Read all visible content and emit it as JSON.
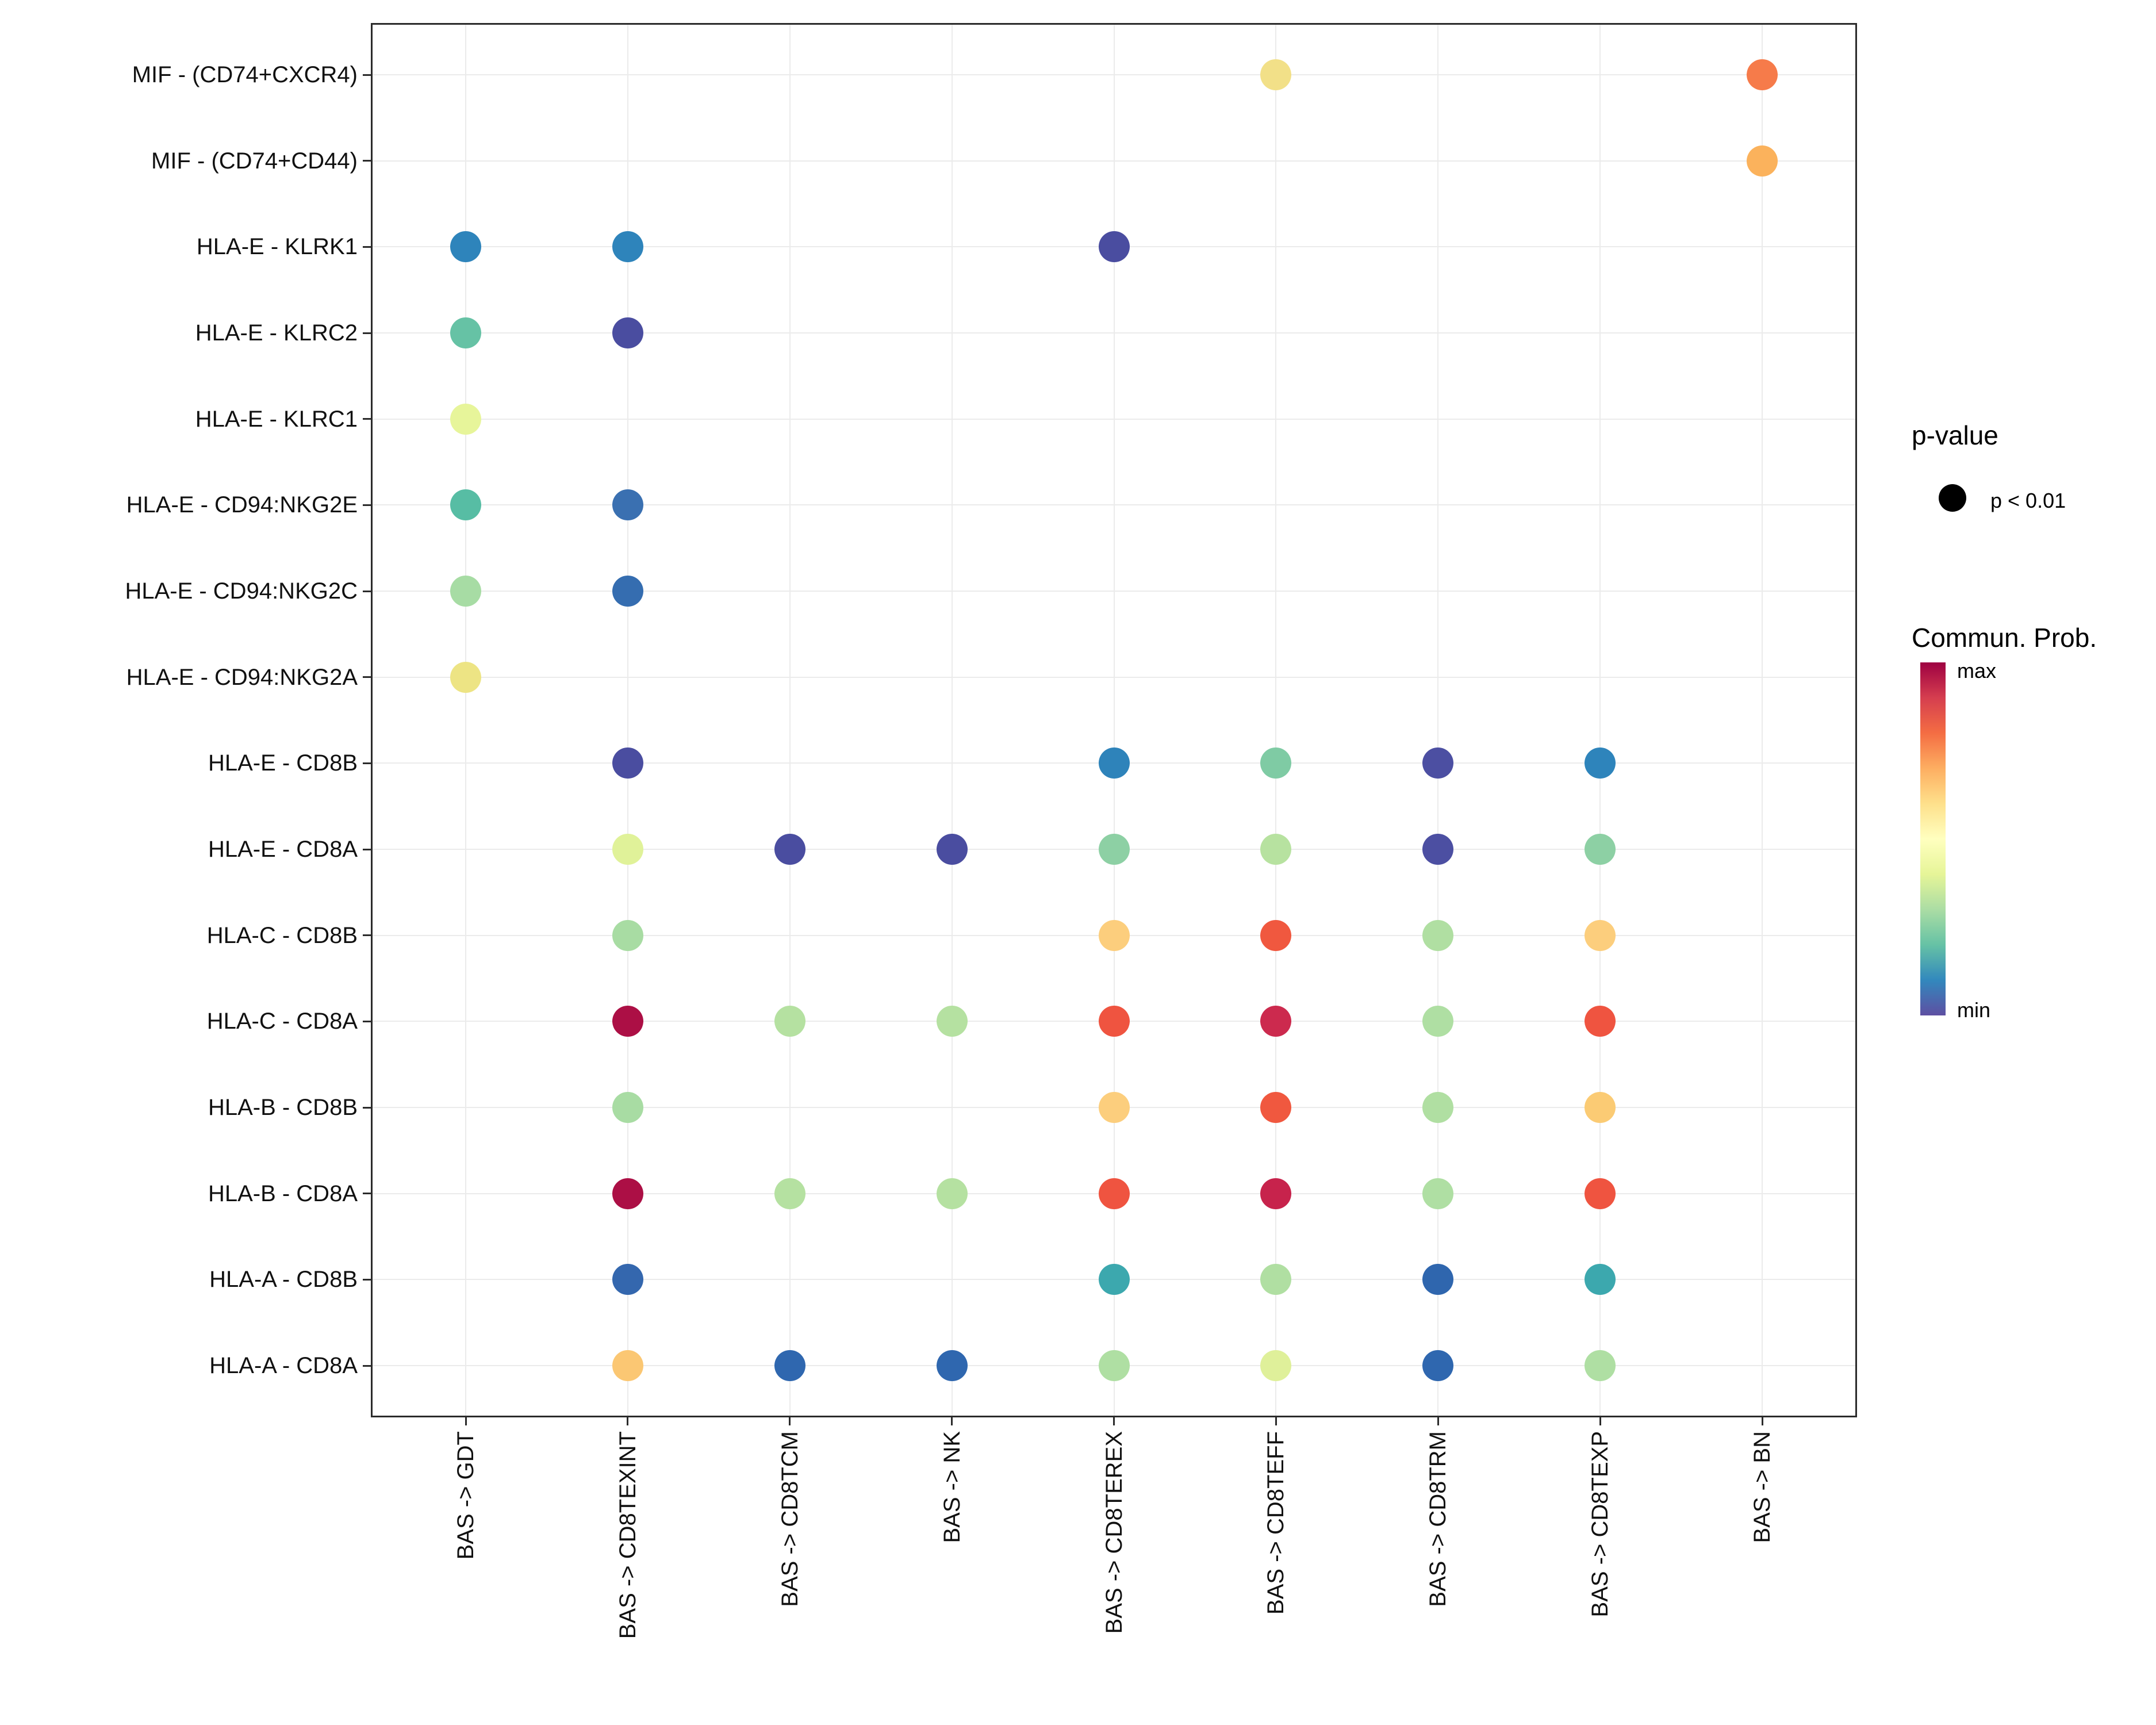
{
  "chart_data": {
    "type": "scatter",
    "subtype": "bubble-dotplot",
    "title": "",
    "x_axis": {
      "label": "",
      "categories": [
        "BAS -> GDT",
        "BAS -> CD8TEXINT",
        "BAS -> CD8TCM",
        "BAS -> NK",
        "BAS -> CD8TEREX",
        "BAS -> CD8TEFF",
        "BAS -> CD8TRM",
        "BAS -> CD8TEXP",
        "BAS -> BN"
      ]
    },
    "y_axis": {
      "label": "",
      "categories_top_to_bottom": [
        "MIF - (CD74+CXCR4)",
        "MIF - (CD74+CD44)",
        "HLA-E - KLRK1",
        "HLA-E - KLRC2",
        "HLA-E - KLRC1",
        "HLA-E - CD94:NKG2E",
        "HLA-E - CD94:NKG2C",
        "HLA-E - CD94:NKG2A",
        "HLA-E - CD8B",
        "HLA-E - CD8A",
        "HLA-C - CD8B",
        "HLA-C - CD8A",
        "HLA-B - CD8B",
        "HLA-B - CD8A",
        "HLA-A - CD8B",
        "HLA-A - CD8A"
      ]
    },
    "grid": true,
    "points": [
      {
        "x": "BAS -> CD8TEFF",
        "y": "MIF - (CD74+CXCR4)",
        "color": "#F2E088"
      },
      {
        "x": "BAS -> BN",
        "y": "MIF - (CD74+CXCR4)",
        "color": "#F67B4A"
      },
      {
        "x": "BAS -> BN",
        "y": "MIF - (CD74+CD44)",
        "color": "#FBB25C"
      },
      {
        "x": "BAS -> GDT",
        "y": "HLA-E - KLRK1",
        "color": "#2E84BB"
      },
      {
        "x": "BAS -> CD8TEXINT",
        "y": "HLA-E - KLRK1",
        "color": "#2E84BB"
      },
      {
        "x": "BAS -> CD8TEREX",
        "y": "HLA-E - KLRK1",
        "color": "#4A4DA0"
      },
      {
        "x": "BAS -> GDT",
        "y": "HLA-E - KLRC2",
        "color": "#66C2A5"
      },
      {
        "x": "BAS -> CD8TEXINT",
        "y": "HLA-E - KLRC2",
        "color": "#4A4DA0"
      },
      {
        "x": "BAS -> GDT",
        "y": "HLA-E - KLRC1",
        "color": "#E7F59A"
      },
      {
        "x": "BAS -> GDT",
        "y": "HLA-E - CD94:NKG2E",
        "color": "#57BDA4"
      },
      {
        "x": "BAS -> CD8TEXINT",
        "y": "HLA-E - CD94:NKG2E",
        "color": "#3A70B1"
      },
      {
        "x": "BAS -> GDT",
        "y": "HLA-E - CD94:NKG2C",
        "color": "#A7DCA4"
      },
      {
        "x": "BAS -> CD8TEXINT",
        "y": "HLA-E - CD94:NKG2C",
        "color": "#356DB0"
      },
      {
        "x": "BAS -> GDT",
        "y": "HLA-E - CD94:NKG2A",
        "color": "#EDE484"
      },
      {
        "x": "BAS -> CD8TEXINT",
        "y": "HLA-E - CD8B",
        "color": "#4A4DA0"
      },
      {
        "x": "BAS -> CD8TEREX",
        "y": "HLA-E - CD8B",
        "color": "#2E83BA"
      },
      {
        "x": "BAS -> CD8TEFF",
        "y": "HLA-E - CD8B",
        "color": "#7FCBA4"
      },
      {
        "x": "BAS -> CD8TRM",
        "y": "HLA-E - CD8B",
        "color": "#4C4FA2"
      },
      {
        "x": "BAS -> CD8TEXP",
        "y": "HLA-E - CD8B",
        "color": "#2E84BB"
      },
      {
        "x": "BAS -> CD8TEXINT",
        "y": "HLA-E - CD8A",
        "color": "#E0F299"
      },
      {
        "x": "BAS -> CD8TCM",
        "y": "HLA-E - CD8A",
        "color": "#4A4DA0"
      },
      {
        "x": "BAS -> NK",
        "y": "HLA-E - CD8A",
        "color": "#4A4DA0"
      },
      {
        "x": "BAS -> CD8TEREX",
        "y": "HLA-E - CD8A",
        "color": "#8DD0A4"
      },
      {
        "x": "BAS -> CD8TEFF",
        "y": "HLA-E - CD8A",
        "color": "#B7E2A0"
      },
      {
        "x": "BAS -> CD8TRM",
        "y": "HLA-E - CD8A",
        "color": "#4C4FA2"
      },
      {
        "x": "BAS -> CD8TEXP",
        "y": "HLA-E - CD8A",
        "color": "#8DD0A4"
      },
      {
        "x": "BAS -> CD8TEXINT",
        "y": "HLA-C - CD8B",
        "color": "#A8DCA3"
      },
      {
        "x": "BAS -> CD8TEREX",
        "y": "HLA-C - CD8B",
        "color": "#FCCE7D"
      },
      {
        "x": "BAS -> CD8TEFF",
        "y": "HLA-C - CD8B",
        "color": "#F0583F"
      },
      {
        "x": "BAS -> CD8TRM",
        "y": "HLA-C - CD8B",
        "color": "#B0DFA2"
      },
      {
        "x": "BAS -> CD8TEXP",
        "y": "HLA-C - CD8B",
        "color": "#FCCE7D"
      },
      {
        "x": "BAS -> CD8TEXINT",
        "y": "HLA-C - CD8A",
        "color": "#AC0F45"
      },
      {
        "x": "BAS -> CD8TCM",
        "y": "HLA-C - CD8A",
        "color": "#B5E1A1"
      },
      {
        "x": "BAS -> NK",
        "y": "HLA-C - CD8A",
        "color": "#B5E1A1"
      },
      {
        "x": "BAS -> CD8TEREX",
        "y": "HLA-C - CD8A",
        "color": "#EF5440"
      },
      {
        "x": "BAS -> CD8TEFF",
        "y": "HLA-C - CD8A",
        "color": "#CC2A4E"
      },
      {
        "x": "BAS -> CD8TRM",
        "y": "HLA-C - CD8A",
        "color": "#AFDFA3"
      },
      {
        "x": "BAS -> CD8TEXP",
        "y": "HLA-C - CD8A",
        "color": "#EF5440"
      },
      {
        "x": "BAS -> CD8TEXINT",
        "y": "HLA-B - CD8B",
        "color": "#A8DCA3"
      },
      {
        "x": "BAS -> CD8TEREX",
        "y": "HLA-B - CD8B",
        "color": "#FCCE7D"
      },
      {
        "x": "BAS -> CD8TEFF",
        "y": "HLA-B - CD8B",
        "color": "#F0583F"
      },
      {
        "x": "BAS -> CD8TRM",
        "y": "HLA-B - CD8B",
        "color": "#B0DFA2"
      },
      {
        "x": "BAS -> CD8TEXP",
        "y": "HLA-B - CD8B",
        "color": "#FBCB74"
      },
      {
        "x": "BAS -> CD8TEXINT",
        "y": "HLA-B - CD8A",
        "color": "#AC0F45"
      },
      {
        "x": "BAS -> CD8TCM",
        "y": "HLA-B - CD8A",
        "color": "#B5E1A1"
      },
      {
        "x": "BAS -> NK",
        "y": "HLA-B - CD8A",
        "color": "#B5E1A1"
      },
      {
        "x": "BAS -> CD8TEREX",
        "y": "HLA-B - CD8A",
        "color": "#EF5440"
      },
      {
        "x": "BAS -> CD8TEFF",
        "y": "HLA-B - CD8A",
        "color": "#C7234C"
      },
      {
        "x": "BAS -> CD8TRM",
        "y": "HLA-B - CD8A",
        "color": "#AFDFA3"
      },
      {
        "x": "BAS -> CD8TEXP",
        "y": "HLA-B - CD8A",
        "color": "#EF5440"
      },
      {
        "x": "BAS -> CD8TEXINT",
        "y": "HLA-A - CD8B",
        "color": "#3467AE"
      },
      {
        "x": "BAS -> CD8TEREX",
        "y": "HLA-A - CD8B",
        "color": "#3CA8AE"
      },
      {
        "x": "BAS -> CD8TEFF",
        "y": "HLA-A - CD8B",
        "color": "#B0DFA2"
      },
      {
        "x": "BAS -> CD8TRM",
        "y": "HLA-A - CD8B",
        "color": "#2F66AE"
      },
      {
        "x": "BAS -> CD8TEXP",
        "y": "HLA-A - CD8B",
        "color": "#3CA8AE"
      },
      {
        "x": "BAS -> CD8TEXINT",
        "y": "HLA-A - CD8A",
        "color": "#FBC773"
      },
      {
        "x": "BAS -> CD8TCM",
        "y": "HLA-A - CD8A",
        "color": "#2F67AF"
      },
      {
        "x": "BAS -> NK",
        "y": "HLA-A - CD8A",
        "color": "#2F67AF"
      },
      {
        "x": "BAS -> CD8TEREX",
        "y": "HLA-A - CD8A",
        "color": "#AFDFA3"
      },
      {
        "x": "BAS -> CD8TEFF",
        "y": "HLA-A - CD8A",
        "color": "#DFF09A"
      },
      {
        "x": "BAS -> CD8TRM",
        "y": "HLA-A - CD8A",
        "color": "#2F67AF"
      },
      {
        "x": "BAS -> CD8TEXP",
        "y": "HLA-A - CD8A",
        "color": "#AFDFA3"
      }
    ],
    "legend": {
      "pvalue_title": "p-value",
      "pvalue_label": "p < 0.01",
      "colorbar_title": "Commun. Prob.",
      "max_label": "max",
      "min_label": "min",
      "gradient_colors_top_to_bottom": [
        "#9E0142",
        "#D53E4F",
        "#F46D43",
        "#FDAE61",
        "#FEE08B",
        "#FFFFBF",
        "#E6F598",
        "#ABDDA4",
        "#66C2A5",
        "#3288BD",
        "#5E4FA2"
      ]
    }
  }
}
